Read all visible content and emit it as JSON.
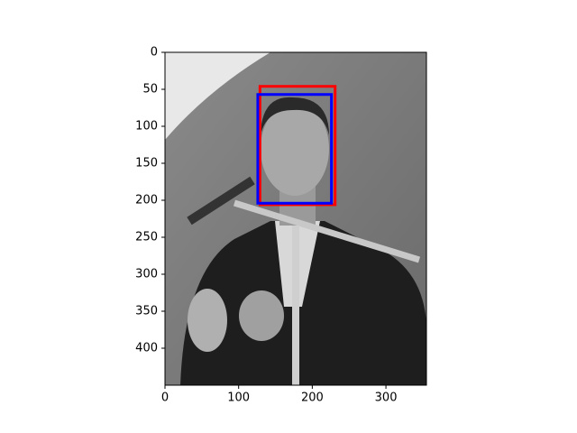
{
  "chart_data": {
    "type": "image",
    "xlim": [
      0,
      355
    ],
    "ylim": [
      450,
      0
    ],
    "xticks": [
      0,
      100,
      200,
      300
    ],
    "yticks": [
      0,
      50,
      100,
      150,
      200,
      250,
      300,
      350,
      400
    ],
    "boxes": [
      {
        "color": "#ff0000",
        "x0": 129,
        "y0": 46,
        "x1": 231,
        "y1": 206
      },
      {
        "color": "#0000ff",
        "x0": 126,
        "y0": 57,
        "x1": 226,
        "y1": 204
      }
    ]
  }
}
